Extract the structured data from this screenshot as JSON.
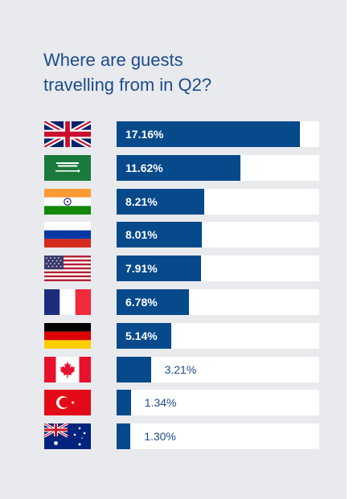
{
  "title_lines": [
    "Where are guests",
    "travelling from in Q2?"
  ],
  "colors": {
    "bar": "#064a8b",
    "track": "#ffffff",
    "title": "#1c4b8c",
    "background": "#e9eaee"
  },
  "chart_data": {
    "type": "bar",
    "orientation": "horizontal",
    "title": "Where are guests travelling from in Q2?",
    "categories": [
      "United Kingdom",
      "Saudi Arabia",
      "India",
      "Russia",
      "United States",
      "France",
      "Germany",
      "Canada",
      "Turkey",
      "Australia"
    ],
    "flag_icons": [
      "uk-flag-icon",
      "saudi-arabia-flag-icon",
      "india-flag-icon",
      "russia-flag-icon",
      "usa-flag-icon",
      "france-flag-icon",
      "germany-flag-icon",
      "canada-flag-icon",
      "turkey-flag-icon",
      "australia-flag-icon"
    ],
    "values": [
      17.16,
      11.62,
      8.21,
      8.01,
      7.91,
      6.78,
      5.14,
      3.21,
      1.34,
      1.3
    ],
    "labels": [
      "17.16%",
      "11.62%",
      "8.21%",
      "8.01%",
      "7.91%",
      "6.78%",
      "5.14%",
      "3.21%",
      "1.34%",
      "1.30%"
    ],
    "xlim": [
      0,
      19
    ],
    "xlabel": "",
    "ylabel": "",
    "grid": false,
    "legend": "none"
  }
}
